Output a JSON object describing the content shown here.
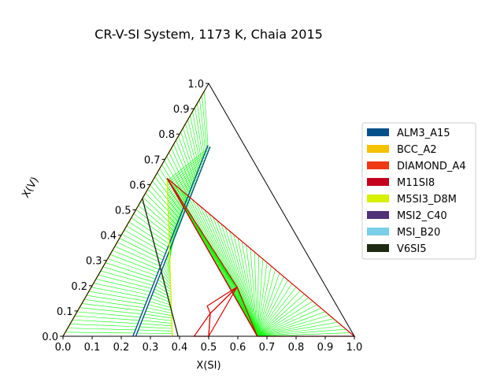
{
  "chart_data": {
    "type": "ternary-phase-diagram",
    "title": "CR-V-SI System, 1173 K, Chaia 2015",
    "xlabel": "X(SI)",
    "ylabel": "X(V)",
    "xlim": [
      0.0,
      1.0
    ],
    "ylim": [
      0.0,
      1.0
    ],
    "x_ticks": [
      "0.0",
      "0.1",
      "0.2",
      "0.3",
      "0.4",
      "0.5",
      "0.6",
      "0.7",
      "0.8",
      "0.9",
      "1.0"
    ],
    "y_ticks": [
      "0.0",
      "0.1",
      "0.2",
      "0.3",
      "0.4",
      "0.5",
      "0.6",
      "0.7",
      "0.8",
      "0.9",
      "1.0"
    ],
    "legend_position": "right",
    "legend": [
      {
        "name": "ALM3_A15",
        "color": "#00518a"
      },
      {
        "name": "BCC_A2",
        "color": "#f5c200"
      },
      {
        "name": "DIAMOND_A4",
        "color": "#ee3a12"
      },
      {
        "name": "M11SI8",
        "color": "#c4001c"
      },
      {
        "name": "M5SI3_D8M",
        "color": "#d6f000"
      },
      {
        "name": "MSI2_C40",
        "color": "#503278"
      },
      {
        "name": "MSI_B20",
        "color": "#7acfe8"
      },
      {
        "name": "V6SI5",
        "color": "#1f2a14"
      }
    ],
    "tie_line_color": "#00ff00",
    "three_phase_color": "#dd0000",
    "phase_boundaries": [
      {
        "phase": "BCC_A2",
        "points": [
          [
            0.0,
            0.0
          ],
          [
            0.0,
            0.97
          ]
        ]
      },
      {
        "phase": "ALM3_A15",
        "points": [
          [
            0.25,
            0.0
          ],
          [
            0.13,
            0.75
          ]
        ]
      },
      {
        "phase": "ALM3_A15",
        "points": [
          [
            0.24,
            0.0
          ],
          [
            0.12,
            0.755
          ]
        ]
      },
      {
        "phase": "M5SI3_D8M",
        "points": [
          [
            0.375,
            0.0
          ],
          [
            0.05,
            0.615
          ]
        ]
      },
      {
        "phase": "V6SI5",
        "points": [
          [
            0.395,
            0.0
          ],
          [
            0.0,
            0.545
          ]
        ]
      },
      {
        "phase": "MSI2_C40",
        "points": [
          [
            0.667,
            0.0
          ],
          [
            0.045,
            0.625
          ]
        ]
      }
    ],
    "three_phase_triangles": [
      [
        [
          0.667,
          0.0
        ],
        [
          0.045,
          0.625
        ],
        [
          1.0,
          0.0
        ]
      ],
      [
        [
          0.667,
          0.0
        ],
        [
          0.045,
          0.625
        ],
        [
          0.5,
          0.195
        ]
      ],
      [
        [
          0.5,
          0.0
        ],
        [
          0.5,
          0.195
        ],
        [
          0.46,
          0.09
        ]
      ],
      [
        [
          0.46,
          0.09
        ],
        [
          0.5,
          0.195
        ],
        [
          0.435,
          0.12
        ]
      ],
      [
        [
          0.45,
          0.0
        ],
        [
          0.46,
          0.09
        ],
        [
          0.5,
          0.0
        ]
      ]
    ],
    "tie_line_regions": [
      {
        "from": [
          [
            0.0,
            0.0
          ],
          [
            0.0,
            0.97
          ]
        ],
        "to": [
          [
            0.24,
            0.0
          ],
          [
            0.12,
            0.755
          ]
        ],
        "count": 60
      },
      {
        "from": [
          [
            0.25,
            0.0
          ],
          [
            0.13,
            0.75
          ]
        ],
        "to": [
          [
            0.375,
            0.0
          ],
          [
            0.05,
            0.615
          ]
        ],
        "count": 60
      },
      {
        "from": [
          [
            0.667,
            0.0
          ],
          [
            0.667,
            0.0
          ]
        ],
        "to": [
          [
            1.0,
            0.0
          ],
          [
            0.045,
            0.625
          ]
        ],
        "count": 45
      },
      {
        "from": [
          [
            0.5,
            0.195
          ],
          [
            0.5,
            0.195
          ]
        ],
        "to": [
          [
            0.667,
            0.0
          ],
          [
            0.045,
            0.625
          ]
        ],
        "count": 25
      }
    ]
  }
}
